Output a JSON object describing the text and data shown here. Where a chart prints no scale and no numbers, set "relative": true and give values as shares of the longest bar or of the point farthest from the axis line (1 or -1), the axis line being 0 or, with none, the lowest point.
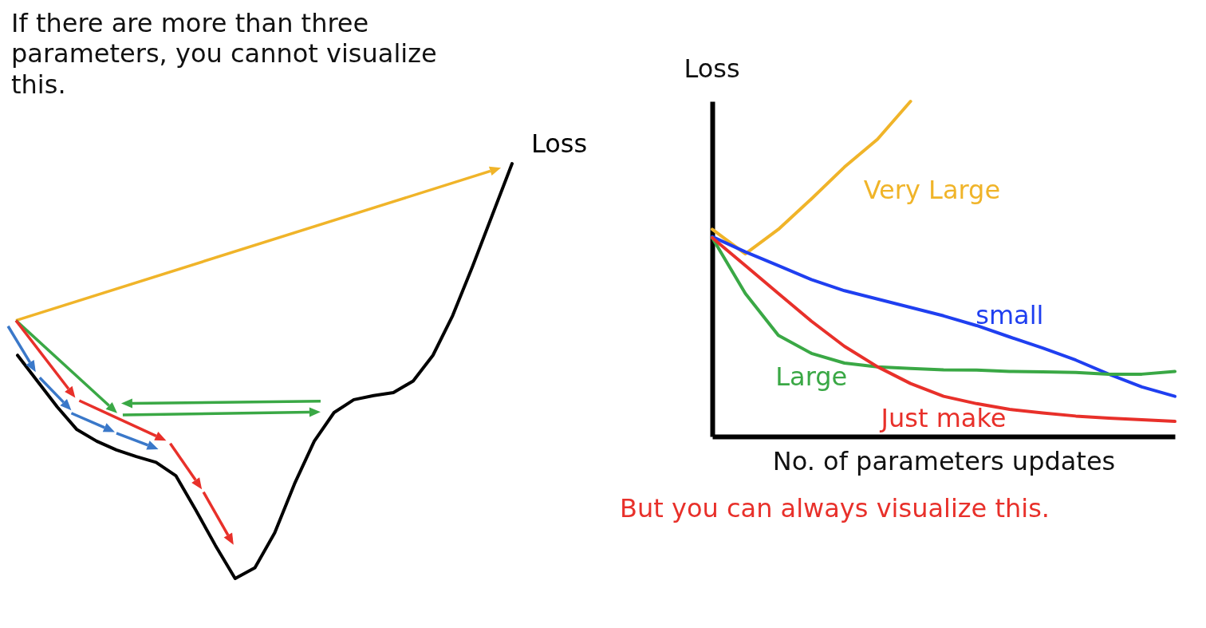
{
  "chart_data": [
    {
      "type": "line",
      "relative": true,
      "legend": false,
      "annotations": [
        "If there are more than three parameters, you cannot visualize this."
      ],
      "categories": [
        null,
        null,
        null,
        null,
        null,
        null,
        null,
        null,
        null,
        null,
        null,
        null,
        null,
        null,
        null,
        null,
        null,
        null,
        null,
        null,
        null,
        null,
        null,
        null,
        null,
        null
      ],
      "series": [
        {
          "name": "Loss",
          "color": "#000000",
          "values": [
            0.538,
            0.476,
            0.414,
            0.359,
            0.331,
            0.31,
            0.294,
            0.28,
            0.248,
            0.166,
            0.08,
            0,
            0.026,
            0.11,
            0.228,
            0.331,
            0.4,
            0.431,
            0.441,
            0.448,
            0.476,
            0.538,
            0.634,
            0.752,
            0.876,
            1.0
          ]
        }
      ]
    },
    {
      "type": "line",
      "relative": true,
      "legend": false,
      "grid": false,
      "xlabel": "No. of parameters updates",
      "ylabel": "Loss",
      "annotations": [
        "But you can always visualize this."
      ],
      "categories": [
        null,
        null,
        null,
        null,
        null,
        null,
        null,
        null,
        null,
        null,
        null,
        null,
        null,
        null,
        null
      ],
      "series": [
        {
          "name": "Very Large",
          "color": "#f0b429",
          "values": [
            0.618,
            0.545,
            0.618,
            0.709,
            0.804,
            0.887,
            1.0,
            null,
            null,
            null,
            null,
            null,
            null,
            null,
            null
          ]
        },
        {
          "name": "small",
          "color": "#1f3ff0",
          "values": [
            0.596,
            0.551,
            0.51,
            0.468,
            0.435,
            0.41,
            0.385,
            0.36,
            0.331,
            0.297,
            0.264,
            0.228,
            0.186,
            0.148,
            0.12
          ]
        },
        {
          "name": "Large",
          "color": "#3aa845",
          "values": [
            0.593,
            0.427,
            0.302,
            0.248,
            0.219,
            0.208,
            0.203,
            0.199,
            0.198,
            0.194,
            0.193,
            0.191,
            0.186,
            0.186,
            0.194
          ]
        },
        {
          "name": "Just make",
          "color": "#e8302a",
          "values": [
            0.593,
            0.51,
            0.427,
            0.344,
            0.269,
            0.208,
            0.158,
            0.12,
            0.098,
            0.081,
            0.07,
            0.061,
            0.055,
            0.05,
            0.045
          ]
        }
      ]
    }
  ]
}
